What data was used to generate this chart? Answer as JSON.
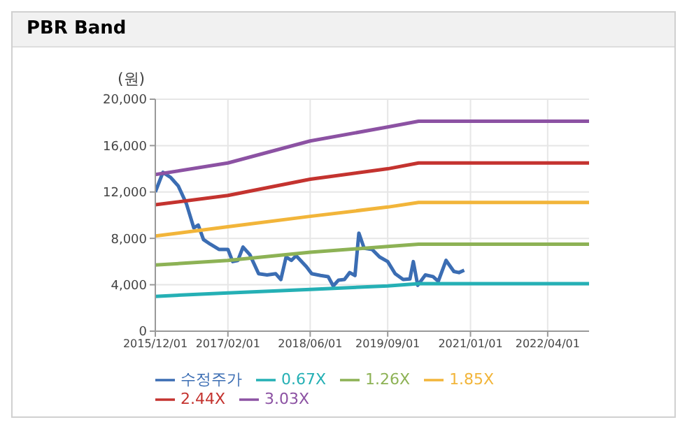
{
  "chart_data": {
    "type": "line",
    "title": "PBR Band",
    "ylabel": "(원)",
    "xlim": [
      "2015-12-01",
      "2022-12-01"
    ],
    "xticks": [
      {
        "value": "2015-12-01",
        "label": "2015/12/01"
      },
      {
        "value": "2017-02-01",
        "label": "2017/02/01"
      },
      {
        "value": "2018-06-01",
        "label": "2018/06/01"
      },
      {
        "value": "2019-09-01",
        "label": "2019/09/01"
      },
      {
        "value": "2021-01-01",
        "label": "2021/01/01"
      },
      {
        "value": "2022-04-01",
        "label": "2022/04/01"
      }
    ],
    "ylim": [
      0,
      20000
    ],
    "yticks": [
      0,
      {
        "value": 4000,
        "label": "4,000"
      },
      {
        "value": 8000,
        "label": "8,000"
      },
      {
        "value": 12000,
        "label": "12,000"
      },
      {
        "value": 16000,
        "label": "16,000"
      },
      {
        "value": 20000,
        "label": "20,000"
      }
    ],
    "grid": true,
    "legend": "bottom",
    "marker": "none",
    "line_style": "solid",
    "series": [
      {
        "name": "수정주가",
        "color": "#3b6db3",
        "x": [
          "2015-12-01",
          "2016-01-15",
          "2016-03-01",
          "2016-04-15",
          "2016-06-01",
          "2016-07-15",
          "2016-08-10",
          "2016-09-10",
          "2016-10-20",
          "2016-12-10",
          "2017-02-01",
          "2017-03-01",
          "2017-04-01",
          "2017-05-01",
          "2017-06-10",
          "2017-08-01",
          "2017-09-20",
          "2017-11-10",
          "2017-12-10",
          "2018-01-10",
          "2018-02-10",
          "2018-03-10",
          "2018-05-10",
          "2018-06-10",
          "2018-08-01",
          "2018-09-15",
          "2018-10-15",
          "2018-11-15",
          "2018-12-20",
          "2019-01-20",
          "2019-02-20",
          "2019-03-15",
          "2019-04-15",
          "2019-06-01",
          "2019-07-15",
          "2019-09-01",
          "2019-10-15",
          "2019-12-01",
          "2020-01-10",
          "2020-01-30",
          "2020-02-25",
          "2020-04-10",
          "2020-05-25",
          "2020-06-25",
          "2020-08-10",
          "2020-09-25",
          "2020-10-25",
          "2020-11-25"
        ],
        "values": [
          12000,
          13700,
          13250,
          12500,
          11000,
          8900,
          9150,
          7900,
          7500,
          7050,
          7050,
          6000,
          6100,
          7250,
          6600,
          4950,
          4850,
          4950,
          4450,
          6400,
          6100,
          6500,
          5550,
          4950,
          4800,
          4700,
          3900,
          4400,
          4450,
          5050,
          4800,
          8450,
          7150,
          7050,
          6400,
          6000,
          4950,
          4450,
          4500,
          6000,
          3950,
          4850,
          4700,
          4300,
          6100,
          5150,
          5050,
          5250
        ]
      },
      {
        "name": "0.67X",
        "color": "#25b0b5",
        "x": [
          "2015-12-01",
          "2017-02-01",
          "2018-06-01",
          "2019-09-01",
          "2020-03-01",
          "2022-12-01"
        ],
        "values": [
          3000,
          3300,
          3600,
          3900,
          4100,
          4100
        ]
      },
      {
        "name": "1.26X",
        "color": "#8db255",
        "x": [
          "2015-12-01",
          "2017-02-01",
          "2018-06-01",
          "2019-09-01",
          "2020-03-01",
          "2022-12-01"
        ],
        "values": [
          5700,
          6100,
          6800,
          7300,
          7500,
          7500
        ]
      },
      {
        "name": "1.85X",
        "color": "#f2b53a",
        "x": [
          "2015-12-01",
          "2017-02-01",
          "2018-06-01",
          "2019-09-01",
          "2020-03-01",
          "2022-12-01"
        ],
        "values": [
          8200,
          9000,
          9900,
          10700,
          11100,
          11100
        ]
      },
      {
        "name": "2.44X",
        "color": "#c4332f",
        "x": [
          "2015-12-01",
          "2017-02-01",
          "2018-06-01",
          "2019-09-01",
          "2020-03-01",
          "2022-12-01"
        ],
        "values": [
          10900,
          11700,
          13100,
          14000,
          14500,
          14500
        ]
      },
      {
        "name": "3.03X",
        "color": "#8c52a3",
        "x": [
          "2015-12-01",
          "2017-02-01",
          "2018-06-01",
          "2019-09-01",
          "2020-03-01",
          "2022-12-01"
        ],
        "values": [
          13500,
          14500,
          16400,
          17600,
          18100,
          18100
        ]
      }
    ]
  }
}
